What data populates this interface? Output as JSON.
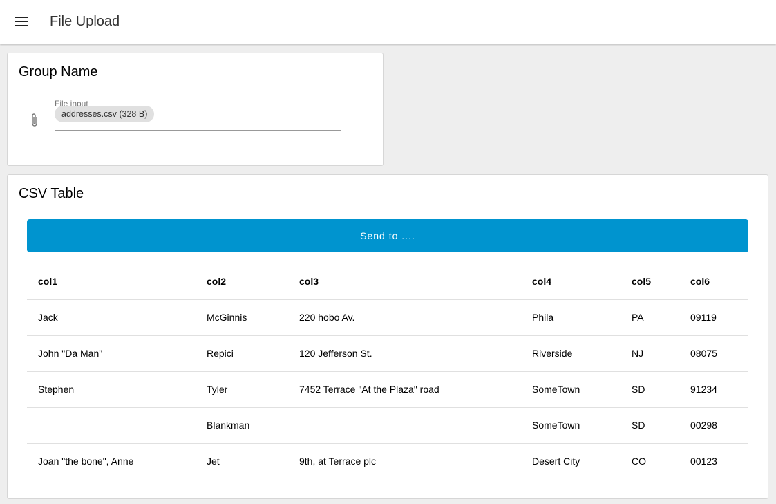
{
  "appbar": {
    "title": "File Upload",
    "menu_icon": "hamburger-menu-icon"
  },
  "group_card": {
    "title": "Group Name",
    "file_input": {
      "label": "File input",
      "chip": "addresses.csv (328 B)",
      "icon": "paperclip-icon"
    }
  },
  "csv_card": {
    "title": "CSV Table",
    "send_label": "Send to ....",
    "accent": "#0094cf",
    "headers": [
      "col1",
      "col2",
      "col3",
      "col4",
      "col5",
      "col6"
    ],
    "rows": [
      [
        "Jack",
        "McGinnis",
        "220 hobo Av.",
        "Phila",
        "PA",
        "09119"
      ],
      [
        "John \"Da Man\"",
        "Repici",
        "120 Jefferson St.",
        "Riverside",
        "NJ",
        "08075"
      ],
      [
        "Stephen",
        "Tyler",
        "7452 Terrace \"At the Plaza\" road",
        "SomeTown",
        "SD",
        "91234"
      ],
      [
        "",
        "Blankman",
        "",
        "SomeTown",
        "SD",
        "00298"
      ],
      [
        "Joan \"the bone\", Anne",
        "Jet",
        "9th, at Terrace plc",
        "Desert City",
        "CO",
        "00123"
      ]
    ]
  }
}
